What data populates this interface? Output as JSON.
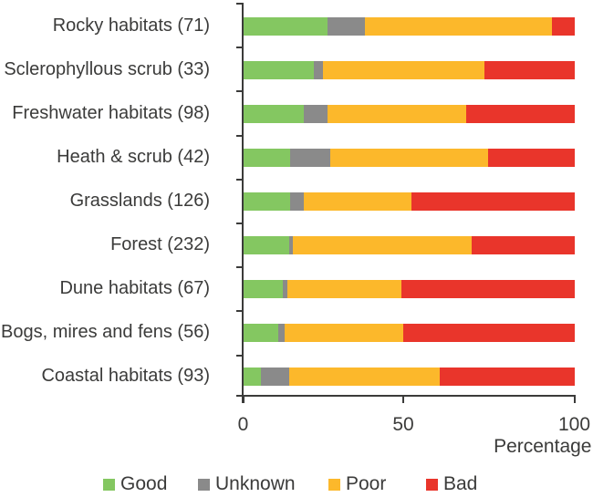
{
  "chart_data": {
    "type": "bar",
    "orientation": "horizontal",
    "stacked": true,
    "xlabel": "Percentage",
    "xlim": [
      0,
      100
    ],
    "xticks": [
      0,
      50,
      100
    ],
    "grid": false,
    "legend_position": "bottom",
    "categories": [
      "Rocky habitats (71)",
      "Sclerophyllous scrub (33)",
      "Freshwater habitats (98)",
      "Heath & scrub (42)",
      "Grasslands (126)",
      "Forest (232)",
      "Dune habitats (67)",
      "Bogs, mires and fens (56)",
      "Coastal habitats (93)"
    ],
    "series": [
      {
        "name": "Good",
        "color": "#84c761",
        "values": [
          25.4,
          21.2,
          18.4,
          14.3,
          14.3,
          13.8,
          11.9,
          10.7,
          5.4
        ]
      },
      {
        "name": "Unknown",
        "color": "#8a8a8a",
        "values": [
          11.3,
          3.0,
          7.1,
          11.9,
          4.0,
          1.3,
          1.5,
          1.8,
          8.6
        ]
      },
      {
        "name": "Poor",
        "color": "#fcb82b",
        "values": [
          56.3,
          48.5,
          41.8,
          47.6,
          32.5,
          53.9,
          34.3,
          35.7,
          45.2
        ]
      },
      {
        "name": "Bad",
        "color": "#e9352b",
        "values": [
          7.0,
          27.3,
          32.7,
          26.2,
          49.2,
          31.0,
          52.3,
          51.8,
          40.8
        ]
      }
    ]
  },
  "colors": {
    "text": "#3b3b3a",
    "axis": "#3b3b3a",
    "background": "#ffffff"
  }
}
